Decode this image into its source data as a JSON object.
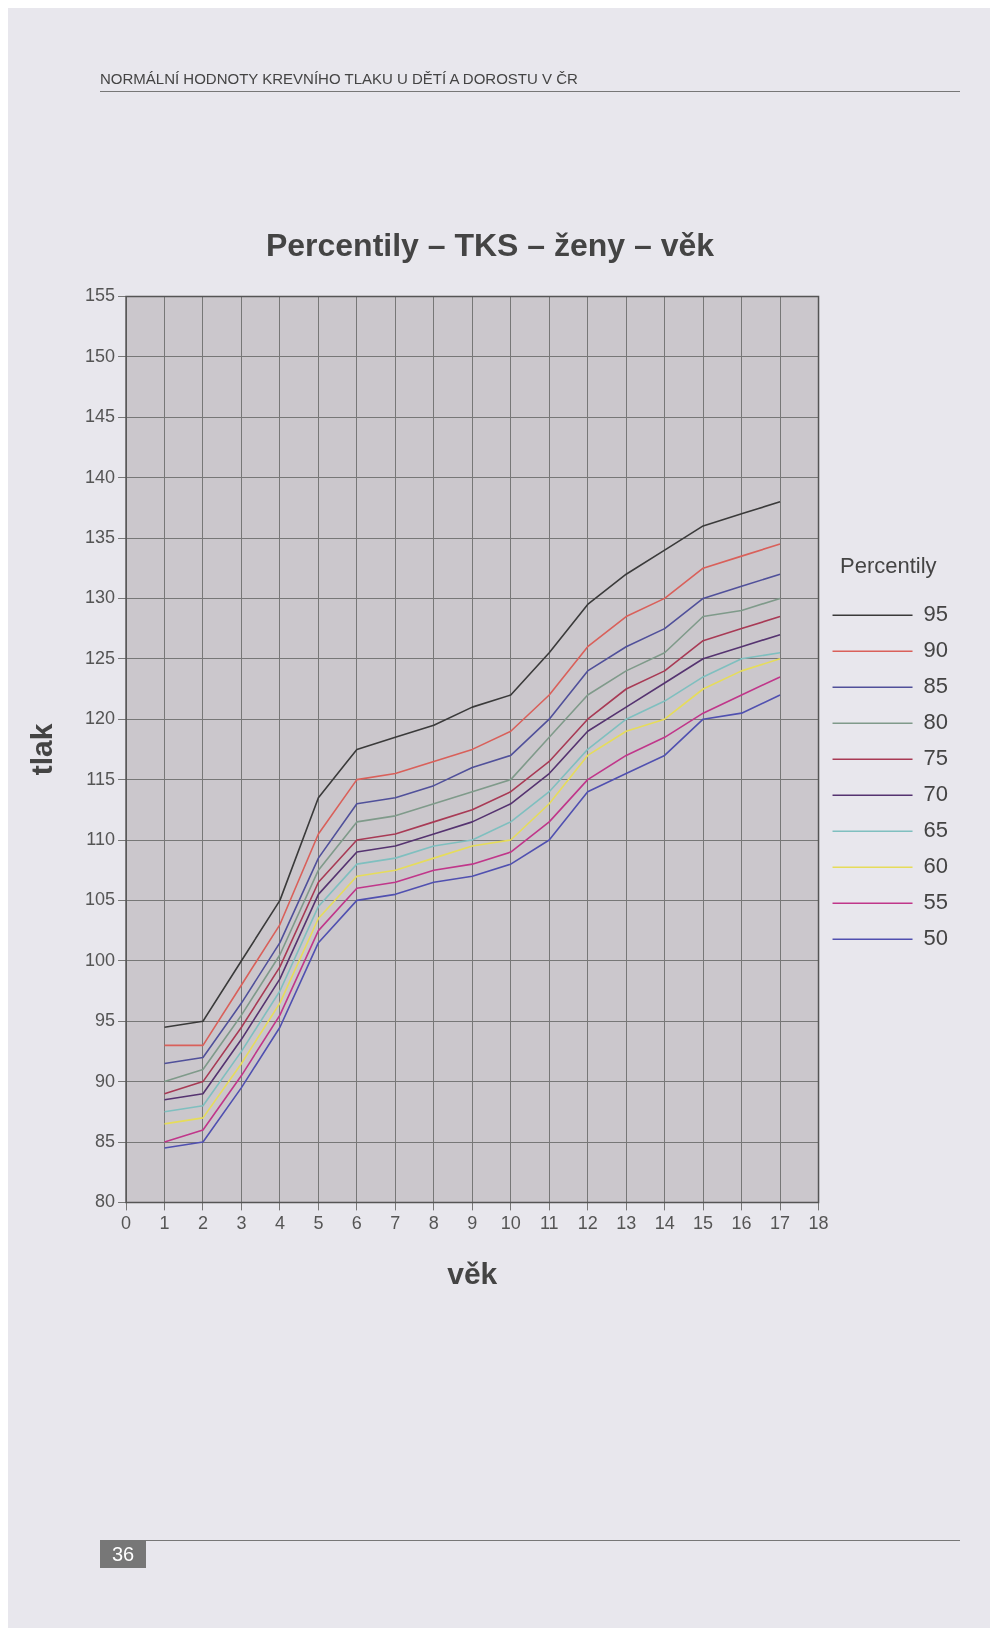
{
  "chart_data": {
    "type": "line",
    "title": "Percentily – TKS – ženy – věk",
    "xlabel": "věk",
    "ylabel": "tlak",
    "legend_title": "Percentily",
    "legend": "right",
    "grid": true,
    "marker": "none",
    "line_style": "solid",
    "annotations": [
      "NORMÁLNÍ HODNOTY KREVNÍHO TLAKU U DĚTÍ A DOROSTU V ČR",
      "36"
    ],
    "xlim": [
      0,
      18
    ],
    "xticks": [
      0,
      1,
      2,
      3,
      4,
      5,
      6,
      7,
      8,
      9,
      10,
      11,
      12,
      13,
      14,
      15,
      16,
      17,
      18
    ],
    "ylim": [
      80,
      155
    ],
    "yticks": [
      80,
      85,
      90,
      95,
      100,
      105,
      110,
      115,
      120,
      125,
      130,
      135,
      140,
      145,
      150,
      155
    ],
    "x": [
      1,
      2,
      3,
      4,
      5,
      6,
      7,
      8,
      9,
      10,
      11,
      12,
      13,
      14,
      15,
      16,
      17
    ],
    "series": [
      {
        "name": "95",
        "color": "#3a3a3a",
        "values": [
          94.5,
          95,
          100,
          105,
          113.5,
          117.5,
          118.5,
          119.5,
          121,
          122,
          125.5,
          129.5,
          132,
          134,
          136,
          137,
          138
        ]
      },
      {
        "name": "90",
        "color": "#d9605a",
        "values": [
          93,
          93,
          98,
          103,
          110.5,
          115,
          115.5,
          116.5,
          117.5,
          119,
          122,
          126,
          128.5,
          130,
          132.5,
          133.5,
          134.5
        ]
      },
      {
        "name": "85",
        "color": "#50509a",
        "values": [
          91.5,
          92,
          96.5,
          101.5,
          108.5,
          113,
          113.5,
          114.5,
          116,
          117,
          120,
          124,
          126,
          127.5,
          130,
          131,
          132
        ]
      },
      {
        "name": "80",
        "color": "#7f9a8a",
        "values": [
          90,
          91,
          95.5,
          100.5,
          107.5,
          111.5,
          112,
          113,
          114,
          115,
          118.5,
          122,
          124,
          125.5,
          128.5,
          129,
          130
        ]
      },
      {
        "name": "75",
        "color": "#a83a55",
        "values": [
          89,
          90,
          94.5,
          99.5,
          106.5,
          110,
          110.5,
          111.5,
          112.5,
          114,
          116.5,
          120,
          122.5,
          124,
          126.5,
          127.5,
          128.5
        ]
      },
      {
        "name": "70",
        "color": "#553370",
        "values": [
          88.5,
          89,
          93.5,
          98.5,
          105.5,
          109,
          109.5,
          110.5,
          111.5,
          113,
          115.5,
          119,
          121,
          123,
          125,
          126,
          127
        ]
      },
      {
        "name": "65",
        "color": "#7fbfbf",
        "values": [
          87.5,
          88,
          92.5,
          97.5,
          104.5,
          108,
          108.5,
          109.5,
          110,
          111.5,
          114,
          117.5,
          120,
          121.5,
          123.5,
          125,
          125.5
        ]
      },
      {
        "name": "60",
        "color": "#e6dc5a",
        "values": [
          86.5,
          87,
          91.5,
          96.5,
          103.5,
          107,
          107.5,
          108.5,
          109.5,
          110,
          113,
          117,
          119,
          120,
          122.5,
          124,
          125
        ]
      },
      {
        "name": "55",
        "color": "#c0368a",
        "values": [
          85,
          86,
          90.5,
          95.5,
          102.5,
          106,
          106.5,
          107.5,
          108,
          109,
          111.5,
          115,
          117,
          118.5,
          120.5,
          122,
          123.5
        ]
      },
      {
        "name": "50",
        "color": "#5050b0",
        "values": [
          84.5,
          85,
          89.5,
          94.5,
          101.5,
          105,
          105.5,
          106.5,
          107,
          108,
          110,
          114,
          115.5,
          117,
          120,
          120.5,
          122
        ]
      }
    ]
  }
}
